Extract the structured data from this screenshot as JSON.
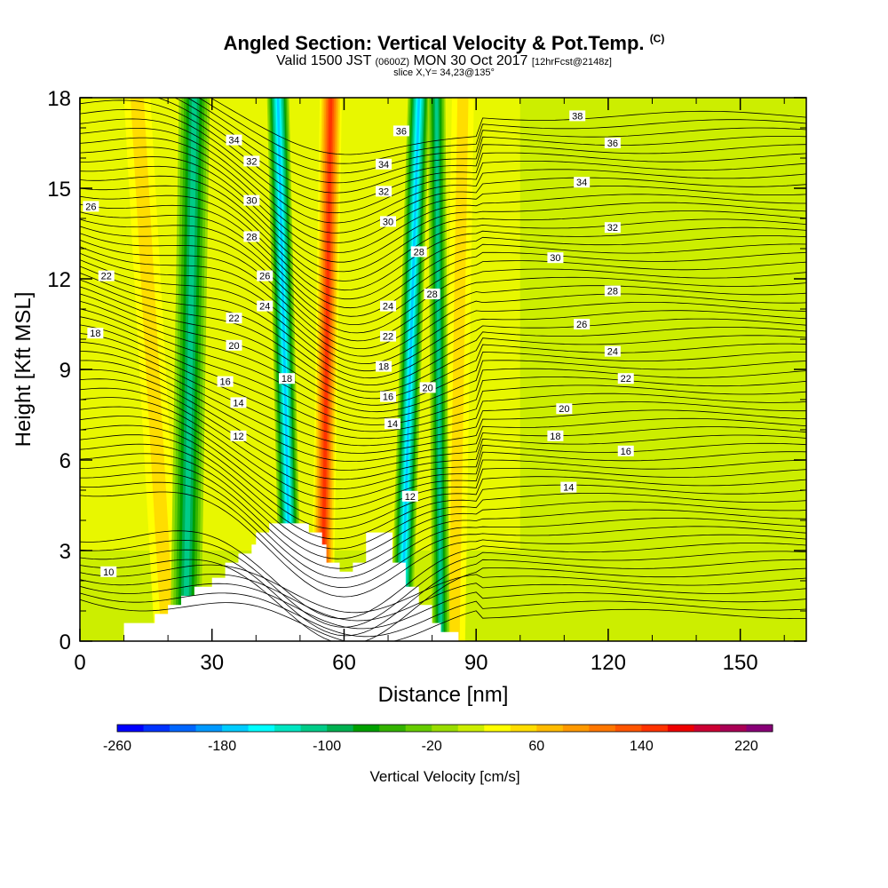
{
  "title": {
    "main": "Angled Section: Vertical Velocity & Pot.Temp.",
    "copyright": "(C)",
    "valid_pre": "Valid 1500 JST",
    "valid_utc": "(0600Z)",
    "valid_date": "MON 30 Oct 2017",
    "forecast": "[12hrFcst@2148z]",
    "slice": "slice X,Y= 34,23@135°"
  },
  "chart_data": {
    "type": "heatmap",
    "overlay": "contour",
    "xlabel": "Distance [nm]",
    "ylabel": "Height [Kft MSL]",
    "xlim": [
      0,
      165
    ],
    "ylim": [
      0,
      18
    ],
    "xticks": [
      "0",
      "30",
      "60",
      "90",
      "120",
      "150"
    ],
    "yticks": [
      "0",
      "3",
      "6",
      "9",
      "12",
      "15",
      "18"
    ],
    "colorbar": {
      "label": "Vertical Velocity [cm/s]",
      "range": [
        -260,
        240
      ],
      "step": 20,
      "tick_labels": [
        "-260",
        "-180",
        "-100",
        "-20",
        "60",
        "140",
        "220"
      ],
      "colors": [
        "#0000ff",
        "#0033ff",
        "#0066ff",
        "#0099ff",
        "#00ccff",
        "#00ffff",
        "#00e6c2",
        "#00cc88",
        "#00b050",
        "#00a000",
        "#33b300",
        "#66cc00",
        "#99dd00",
        "#ccee00",
        "#ffff00",
        "#ffdd00",
        "#ffbb00",
        "#ff9900",
        "#ff7700",
        "#ff5500",
        "#ff3300",
        "#ee0000",
        "#cc0033",
        "#aa0055",
        "#880077"
      ]
    },
    "updraft_bands": [
      {
        "label": "updraft",
        "x_bottom": 55,
        "x_top": 57,
        "width": 5,
        "peak": 140
      },
      {
        "label": "weak updraft",
        "x_bottom": 20,
        "x_top": 13,
        "width": 6,
        "peak": 40
      },
      {
        "label": "weak updraft",
        "x_bottom": 85,
        "x_top": 87,
        "width": 5,
        "peak": 30
      }
    ],
    "downdraft_bands": [
      {
        "label": "downdraft",
        "x_bottom": 48,
        "x_top": 45,
        "width": 5,
        "peak": -180
      },
      {
        "label": "downdraft",
        "x_bottom": 24,
        "x_top": 26,
        "width": 7,
        "peak": -120
      },
      {
        "label": "downdraft",
        "x_bottom": 73,
        "x_top": 77,
        "width": 5,
        "peak": -170
      },
      {
        "label": "downdraft",
        "x_bottom": 82,
        "x_top": 81,
        "width": 4,
        "peak": -110
      }
    ],
    "contour_labels": [
      {
        "text": "34",
        "x": 35,
        "y": 16.6
      },
      {
        "text": "32",
        "x": 39,
        "y": 15.9
      },
      {
        "text": "30",
        "x": 39,
        "y": 14.6
      },
      {
        "text": "28",
        "x": 39,
        "y": 13.4
      },
      {
        "text": "26",
        "x": 2.5,
        "y": 14.4
      },
      {
        "text": "26",
        "x": 42,
        "y": 12.1
      },
      {
        "text": "24",
        "x": 42,
        "y": 11.1
      },
      {
        "text": "22",
        "x": 6,
        "y": 12.1
      },
      {
        "text": "22",
        "x": 35,
        "y": 10.7
      },
      {
        "text": "20",
        "x": 35,
        "y": 9.8
      },
      {
        "text": "18",
        "x": 3.5,
        "y": 10.2
      },
      {
        "text": "18",
        "x": 47,
        "y": 8.7
      },
      {
        "text": "16",
        "x": 33,
        "y": 8.6
      },
      {
        "text": "14",
        "x": 36,
        "y": 7.9
      },
      {
        "text": "12",
        "x": 36,
        "y": 6.8
      },
      {
        "text": "10",
        "x": 6.5,
        "y": 2.3
      },
      {
        "text": "36",
        "x": 73,
        "y": 16.9
      },
      {
        "text": "34",
        "x": 69,
        "y": 15.8
      },
      {
        "text": "32",
        "x": 69,
        "y": 14.9
      },
      {
        "text": "30",
        "x": 70,
        "y": 13.9
      },
      {
        "text": "28",
        "x": 77,
        "y": 12.9
      },
      {
        "text": "28",
        "x": 80,
        "y": 11.5
      },
      {
        "text": "24",
        "x": 70,
        "y": 11.1
      },
      {
        "text": "22",
        "x": 70,
        "y": 10.1
      },
      {
        "text": "18",
        "x": 69,
        "y": 9.1
      },
      {
        "text": "16",
        "x": 70,
        "y": 8.1
      },
      {
        "text": "20",
        "x": 79,
        "y": 8.4
      },
      {
        "text": "14",
        "x": 71,
        "y": 7.2
      },
      {
        "text": "12",
        "x": 75,
        "y": 4.8
      },
      {
        "text": "38",
        "x": 113,
        "y": 17.4
      },
      {
        "text": "36",
        "x": 121,
        "y": 16.5
      },
      {
        "text": "34",
        "x": 114,
        "y": 15.2
      },
      {
        "text": "32",
        "x": 121,
        "y": 13.7
      },
      {
        "text": "30",
        "x": 108,
        "y": 12.7
      },
      {
        "text": "28",
        "x": 121,
        "y": 11.6
      },
      {
        "text": "26",
        "x": 114,
        "y": 10.5
      },
      {
        "text": "24",
        "x": 121,
        "y": 9.6
      },
      {
        "text": "22",
        "x": 124,
        "y": 8.7
      },
      {
        "text": "20",
        "x": 110,
        "y": 7.7
      },
      {
        "text": "18",
        "x": 108,
        "y": 6.8
      },
      {
        "text": "16",
        "x": 124,
        "y": 6.3
      },
      {
        "text": "14",
        "x": 111,
        "y": 5.1
      }
    ],
    "terrain_profile": [
      [
        0,
        0
      ],
      [
        10,
        0
      ],
      [
        10,
        0.6
      ],
      [
        17,
        0.6
      ],
      [
        17,
        0.9
      ],
      [
        20,
        0.9
      ],
      [
        20,
        1.2
      ],
      [
        23,
        1.2
      ],
      [
        23,
        1.5
      ],
      [
        26,
        1.5
      ],
      [
        26,
        1.8
      ],
      [
        30,
        1.8
      ],
      [
        30,
        2.1
      ],
      [
        33,
        2.1
      ],
      [
        33,
        2.6
      ],
      [
        36,
        2.6
      ],
      [
        36,
        2.9
      ],
      [
        39,
        2.9
      ],
      [
        39,
        3.2
      ],
      [
        40,
        3.2
      ],
      [
        40,
        3.6
      ],
      [
        43,
        3.6
      ],
      [
        43,
        3.9
      ],
      [
        52,
        3.9
      ],
      [
        52,
        3.6
      ],
      [
        55,
        3.6
      ],
      [
        55,
        3.2
      ],
      [
        56,
        3.2
      ],
      [
        56,
        2.6
      ],
      [
        59,
        2.6
      ],
      [
        59,
        2.3
      ],
      [
        62,
        2.3
      ],
      [
        62,
        2.6
      ],
      [
        65,
        2.6
      ],
      [
        65,
        3.6
      ],
      [
        71,
        3.6
      ],
      [
        71,
        2.6
      ],
      [
        74,
        2.6
      ],
      [
        74,
        1.8
      ],
      [
        77,
        1.8
      ],
      [
        77,
        1.2
      ],
      [
        80,
        1.2
      ],
      [
        80,
        0.6
      ],
      [
        82,
        0.6
      ],
      [
        82,
        0.3
      ],
      [
        86,
        0.3
      ],
      [
        86,
        0
      ]
    ]
  }
}
